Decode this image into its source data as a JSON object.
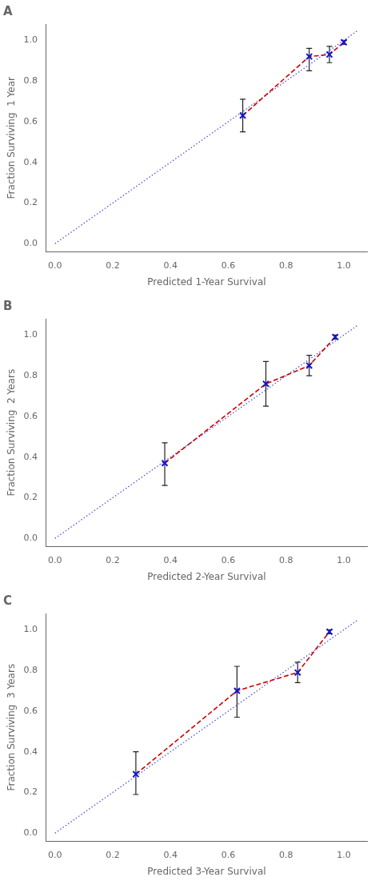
{
  "chart_data": [
    {
      "type": "scatter",
      "title": "A",
      "x_label": "Predicted 1-Year Survival",
      "y_label": "Fraction Surviving  1 Year",
      "xlim": [
        -0.03,
        1.08
      ],
      "ylim": [
        -0.04,
        1.08
      ],
      "xticks": [
        {
          "value": 0.0,
          "label": "0.0"
        },
        0.2,
        0.4,
        0.6,
        0.8,
        {
          "value": 1.0,
          "label": "1.0"
        }
      ],
      "yticks": [
        {
          "value": 0.0,
          "label": "0.0"
        },
        0.2,
        0.4,
        0.6,
        0.8,
        {
          "value": 1.0,
          "label": "1.0"
        }
      ],
      "grid": false,
      "series": [
        {
          "type": "line",
          "line_style": "dotted",
          "color": "#5555DD",
          "x": [
            0.0,
            1.05
          ],
          "values": [
            0.0,
            1.05
          ]
        },
        {
          "type": "errorbar",
          "color": "#222222",
          "x": [
            0.65,
            0.88,
            0.95,
            1.0
          ],
          "low": [
            0.55,
            0.85,
            0.89,
            0.98
          ],
          "high": [
            0.71,
            0.96,
            0.97,
            1.0
          ]
        },
        {
          "type": "line",
          "line_style": "dashed",
          "color": "#CC0000",
          "x": [
            0.65,
            0.88,
            0.95,
            1.0
          ],
          "values": [
            0.63,
            0.92,
            0.93,
            0.99
          ]
        },
        {
          "type": "scatter",
          "marker": "x",
          "color": "#1515CC",
          "x": [
            0.65,
            0.88,
            0.95,
            1.0
          ],
          "values": [
            0.63,
            0.92,
            0.93,
            0.99
          ]
        }
      ]
    },
    {
      "type": "scatter",
      "title": "B",
      "x_label": "Predicted 2-Year Survival",
      "y_label": "Fraction Surviving  2 Years",
      "xlim": [
        -0.03,
        1.08
      ],
      "ylim": [
        -0.04,
        1.08
      ],
      "xticks": [
        {
          "value": 0.0,
          "label": "0.0"
        },
        0.2,
        0.4,
        0.6,
        0.8,
        {
          "value": 1.0,
          "label": "1.0"
        }
      ],
      "yticks": [
        {
          "value": 0.0,
          "label": "0.0"
        },
        0.2,
        0.4,
        0.6,
        0.8,
        {
          "value": 1.0,
          "label": "1.0"
        }
      ],
      "grid": false,
      "series": [
        {
          "type": "line",
          "line_style": "dotted",
          "color": "#5555DD",
          "x": [
            0.0,
            1.05
          ],
          "values": [
            0.0,
            1.05
          ]
        },
        {
          "type": "errorbar",
          "color": "#222222",
          "x": [
            0.38,
            0.73,
            0.88,
            0.97
          ],
          "low": [
            0.26,
            0.65,
            0.8,
            0.98
          ],
          "high": [
            0.47,
            0.87,
            0.9,
            1.0
          ]
        },
        {
          "type": "line",
          "line_style": "dashed",
          "color": "#CC0000",
          "x": [
            0.38,
            0.73,
            0.88,
            0.97
          ],
          "values": [
            0.37,
            0.76,
            0.85,
            0.99
          ]
        },
        {
          "type": "scatter",
          "marker": "x",
          "color": "#1515CC",
          "x": [
            0.38,
            0.73,
            0.88,
            0.97
          ],
          "values": [
            0.37,
            0.76,
            0.85,
            0.99
          ]
        }
      ]
    },
    {
      "type": "scatter",
      "title": "C",
      "x_label": "Predicted 3-Year Survival",
      "y_label": "Fraction Surviving  3 Years",
      "xlim": [
        -0.03,
        1.08
      ],
      "ylim": [
        -0.04,
        1.08
      ],
      "xticks": [
        {
          "value": 0.0,
          "label": "0.0"
        },
        0.2,
        0.4,
        0.6,
        0.8,
        {
          "value": 1.0,
          "label": "1.0"
        }
      ],
      "yticks": [
        {
          "value": 0.0,
          "label": "0.0"
        },
        0.2,
        0.4,
        0.6,
        0.8,
        {
          "value": 1.0,
          "label": "1.0"
        }
      ],
      "grid": false,
      "series": [
        {
          "type": "line",
          "line_style": "dotted",
          "color": "#5555DD",
          "x": [
            0.0,
            1.05
          ],
          "values": [
            0.0,
            1.05
          ]
        },
        {
          "type": "errorbar",
          "color": "#222222",
          "x": [
            0.28,
            0.63,
            0.84,
            0.95
          ],
          "low": [
            0.19,
            0.57,
            0.74,
            0.98
          ],
          "high": [
            0.4,
            0.82,
            0.84,
            1.0
          ]
        },
        {
          "type": "line",
          "line_style": "dashed",
          "color": "#CC0000",
          "x": [
            0.28,
            0.63,
            0.84,
            0.95
          ],
          "values": [
            0.29,
            0.7,
            0.79,
            0.99
          ]
        },
        {
          "type": "scatter",
          "marker": "x",
          "color": "#1515CC",
          "x": [
            0.28,
            0.63,
            0.84,
            0.95
          ],
          "values": [
            0.29,
            0.7,
            0.79,
            0.99
          ]
        }
      ]
    }
  ]
}
